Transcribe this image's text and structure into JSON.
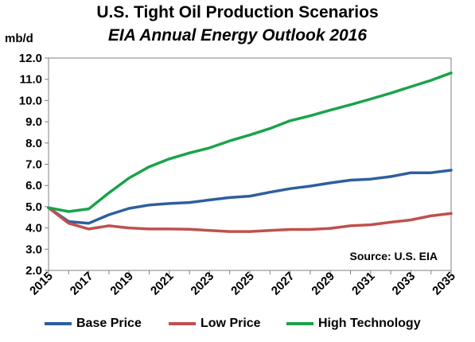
{
  "chart_data": {
    "type": "line",
    "title": "U.S. Tight Oil Production Scenarios",
    "subtitle": "EIA Annual Energy Outlook 2016",
    "ylabel": "mb/d",
    "xlabel": "",
    "annotation": "Source: U.S. EIA",
    "ylim": [
      2.0,
      12.0
    ],
    "yticks": [
      "2.0",
      "3.0",
      "4.0",
      "5.0",
      "6.0",
      "7.0",
      "8.0",
      "9.0",
      "10.0",
      "11.0",
      "12.0"
    ],
    "xlim": [
      2015,
      2035
    ],
    "xticks": [
      "2015",
      "2017",
      "2019",
      "2021",
      "2023",
      "2025",
      "2027",
      "2029",
      "2031",
      "2033",
      "2035"
    ],
    "legend_position": "bottom",
    "grid": false,
    "x": [
      2015,
      2016,
      2017,
      2018,
      2019,
      2020,
      2021,
      2022,
      2023,
      2024,
      2025,
      2026,
      2027,
      2028,
      2029,
      2030,
      2031,
      2032,
      2033,
      2034,
      2035
    ],
    "series": [
      {
        "name": "Base Price",
        "color": "#2e5f9e",
        "values": [
          4.95,
          4.3,
          4.22,
          4.62,
          4.92,
          5.08,
          5.15,
          5.2,
          5.32,
          5.43,
          5.5,
          5.68,
          5.85,
          5.97,
          6.12,
          6.25,
          6.3,
          6.42,
          6.6,
          6.6,
          6.72
        ]
      },
      {
        "name": "Low Price",
        "color": "#c0504d",
        "values": [
          4.95,
          4.22,
          3.95,
          4.1,
          4.0,
          3.95,
          3.95,
          3.94,
          3.88,
          3.83,
          3.83,
          3.88,
          3.93,
          3.93,
          3.98,
          4.1,
          4.15,
          4.27,
          4.38,
          4.57,
          4.68
        ]
      },
      {
        "name": "High Technology",
        "color": "#1aa34a",
        "values": [
          4.95,
          4.77,
          4.9,
          5.65,
          6.35,
          6.88,
          7.25,
          7.53,
          7.77,
          8.1,
          8.38,
          8.68,
          9.05,
          9.28,
          9.55,
          9.8,
          10.07,
          10.35,
          10.65,
          10.95,
          11.3
        ]
      }
    ]
  }
}
